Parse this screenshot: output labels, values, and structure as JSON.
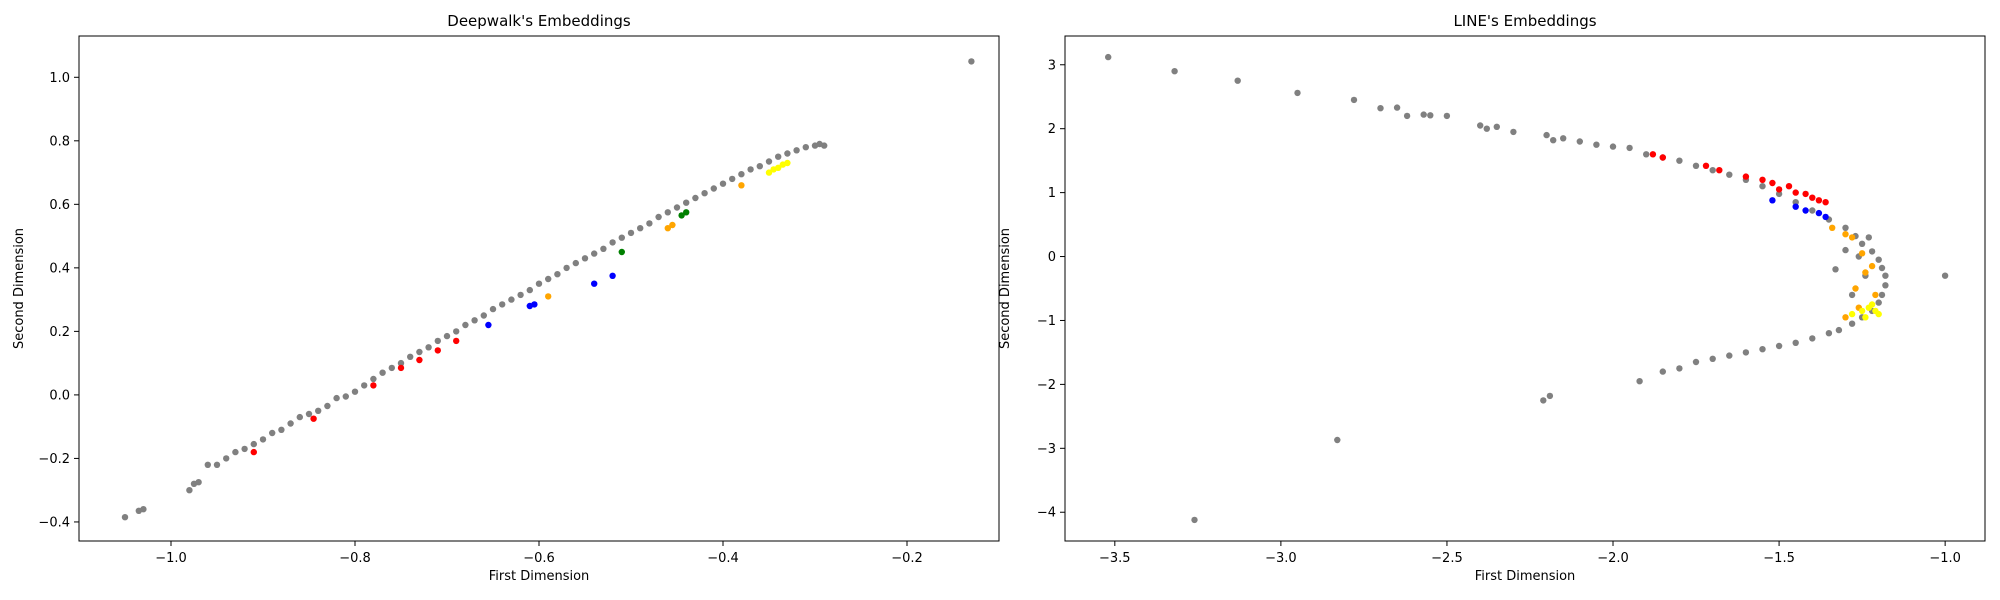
{
  "chart_data": [
    {
      "type": "scatter",
      "title": "Deepwalk's Embeddings",
      "xlabel": "First Dimension",
      "ylabel": "Second Dimension",
      "xlim": [
        -1.1,
        -0.1
      ],
      "ylim": [
        -0.46,
        1.13
      ],
      "xticks": [
        -1.0,
        -0.8,
        -0.6,
        -0.4,
        -0.2
      ],
      "xtick_labels": [
        "−1.0",
        "−0.8",
        "−0.6",
        "−0.4",
        "−0.2"
      ],
      "yticks": [
        -0.4,
        -0.2,
        0.0,
        0.2,
        0.4,
        0.6,
        0.8,
        1.0
      ],
      "ytick_labels": [
        "−0.4",
        "−0.2",
        "0.0",
        "0.2",
        "0.4",
        "0.6",
        "0.8",
        "1.0"
      ],
      "grid": false,
      "legend": "none",
      "series": [
        {
          "color": "#808080",
          "x": [
            -1.05,
            -1.035,
            -1.03,
            -0.98,
            -0.975,
            -0.97,
            -0.96,
            -0.95,
            -0.94,
            -0.93,
            -0.92,
            -0.91,
            -0.9,
            -0.89,
            -0.88,
            -0.87,
            -0.86,
            -0.85,
            -0.84,
            -0.83,
            -0.82,
            -0.81,
            -0.8,
            -0.79,
            -0.78,
            -0.77,
            -0.76,
            -0.75,
            -0.74,
            -0.73,
            -0.72,
            -0.71,
            -0.7,
            -0.69,
            -0.68,
            -0.67,
            -0.66,
            -0.65,
            -0.64,
            -0.63,
            -0.62,
            -0.61,
            -0.6,
            -0.59,
            -0.58,
            -0.57,
            -0.56,
            -0.55,
            -0.54,
            -0.53,
            -0.52,
            -0.51,
            -0.5,
            -0.49,
            -0.48,
            -0.47,
            -0.46,
            -0.45,
            -0.44,
            -0.43,
            -0.42,
            -0.41,
            -0.4,
            -0.39,
            -0.38,
            -0.37,
            -0.36,
            -0.35,
            -0.34,
            -0.33,
            -0.32,
            -0.31,
            -0.3,
            -0.295,
            -0.29,
            -0.13
          ],
          "y": [
            -0.385,
            -0.365,
            -0.36,
            -0.3,
            -0.28,
            -0.275,
            -0.22,
            -0.22,
            -0.2,
            -0.18,
            -0.17,
            -0.155,
            -0.14,
            -0.12,
            -0.11,
            -0.09,
            -0.07,
            -0.06,
            -0.05,
            -0.035,
            -0.01,
            -0.005,
            0.01,
            0.03,
            0.05,
            0.07,
            0.085,
            0.1,
            0.12,
            0.135,
            0.15,
            0.17,
            0.185,
            0.2,
            0.22,
            0.235,
            0.25,
            0.27,
            0.285,
            0.3,
            0.315,
            0.33,
            0.35,
            0.365,
            0.38,
            0.4,
            0.415,
            0.43,
            0.445,
            0.46,
            0.48,
            0.495,
            0.51,
            0.525,
            0.54,
            0.56,
            0.575,
            0.59,
            0.605,
            0.62,
            0.635,
            0.65,
            0.665,
            0.68,
            0.695,
            0.71,
            0.72,
            0.735,
            0.75,
            0.76,
            0.77,
            0.78,
            0.785,
            0.79,
            0.785,
            1.05
          ]
        },
        {
          "color": "#ff0000",
          "x": [
            -0.91,
            -0.845,
            -0.78,
            -0.75,
            -0.73,
            -0.71,
            -0.69
          ],
          "y": [
            -0.18,
            -0.075,
            0.03,
            0.085,
            0.11,
            0.14,
            0.17
          ]
        },
        {
          "color": "#0000ff",
          "x": [
            -0.655,
            -0.61,
            -0.605,
            -0.54,
            -0.52
          ],
          "y": [
            0.22,
            0.28,
            0.285,
            0.35,
            0.375
          ]
        },
        {
          "color": "#008000",
          "x": [
            -0.51,
            -0.445,
            -0.44
          ],
          "y": [
            0.45,
            0.565,
            0.575
          ]
        },
        {
          "color": "#ffa500",
          "x": [
            -0.59,
            -0.46,
            -0.455,
            -0.38
          ],
          "y": [
            0.31,
            0.525,
            0.535,
            0.66
          ]
        },
        {
          "color": "#ffff00",
          "x": [
            -0.35,
            -0.345,
            -0.34,
            -0.335,
            -0.33
          ],
          "y": [
            0.7,
            0.71,
            0.715,
            0.725,
            0.73
          ]
        }
      ]
    },
    {
      "type": "scatter",
      "title": "LINE's Embeddings",
      "xlabel": "First Dimension",
      "ylabel": "Second Dimension",
      "xlim": [
        -3.65,
        -0.88
      ],
      "ylim": [
        -4.45,
        3.45
      ],
      "xticks": [
        -3.5,
        -3.0,
        -2.5,
        -2.0,
        -1.5,
        -1.0
      ],
      "xtick_labels": [
        "−3.5",
        "−3.0",
        "−2.5",
        "−2.0",
        "−1.5",
        "−1.0"
      ],
      "yticks": [
        -4,
        -3,
        -2,
        -1,
        0,
        1,
        2,
        3
      ],
      "ytick_labels": [
        "−4",
        "−3",
        "−2",
        "−1",
        "0",
        "1",
        "2",
        "3"
      ],
      "grid": false,
      "legend": "none",
      "series": [
        {
          "color": "#808080",
          "x": [
            -3.52,
            -3.32,
            -3.13,
            -2.95,
            -2.78,
            -2.7,
            -2.65,
            -2.62,
            -2.57,
            -2.55,
            -2.5,
            -2.4,
            -2.38,
            -2.35,
            -2.3,
            -2.2,
            -2.18,
            -2.15,
            -2.1,
            -2.05,
            -2.0,
            -1.95,
            -1.9,
            -1.85,
            -1.8,
            -1.75,
            -1.7,
            -1.65,
            -1.6,
            -1.55,
            -1.5,
            -1.45,
            -1.4,
            -1.35,
            -1.3,
            -1.27,
            -1.25,
            -1.22,
            -1.2,
            -1.19,
            -1.18,
            -1.18,
            -1.19,
            -1.2,
            -1.22,
            -1.25,
            -1.28,
            -1.32,
            -1.35,
            -1.4,
            -1.45,
            -1.5,
            -1.55,
            -1.6,
            -1.65,
            -1.7,
            -1.75,
            -1.8,
            -1.85,
            -1.92,
            -1.0,
            -2.21,
            -2.19,
            -2.83,
            -3.26,
            -1.26,
            -1.24,
            -1.28,
            -1.23,
            -1.3,
            -1.33
          ],
          "y": [
            3.12,
            2.9,
            2.75,
            2.56,
            2.45,
            2.32,
            2.33,
            2.2,
            2.22,
            2.21,
            2.2,
            2.05,
            2.0,
            2.03,
            1.95,
            1.9,
            1.82,
            1.85,
            1.8,
            1.75,
            1.72,
            1.7,
            1.6,
            1.55,
            1.5,
            1.42,
            1.35,
            1.28,
            1.2,
            1.1,
            0.98,
            0.85,
            0.72,
            0.58,
            0.45,
            0.32,
            0.2,
            0.08,
            -0.05,
            -0.18,
            -0.3,
            -0.45,
            -0.6,
            -0.72,
            -0.85,
            -0.95,
            -1.05,
            -1.15,
            -1.2,
            -1.28,
            -1.35,
            -1.4,
            -1.45,
            -1.5,
            -1.55,
            -1.6,
            -1.65,
            -1.75,
            -1.8,
            -1.95,
            -0.3,
            -2.25,
            -2.18,
            -2.87,
            -4.12,
            0.0,
            -0.3,
            -0.6,
            0.3,
            0.1,
            -0.2
          ]
        },
        {
          "color": "#ff0000",
          "x": [
            -1.88,
            -1.85,
            -1.72,
            -1.68,
            -1.6,
            -1.55,
            -1.52,
            -1.5,
            -1.47,
            -1.45,
            -1.42,
            -1.4,
            -1.38,
            -1.36
          ],
          "y": [
            1.6,
            1.55,
            1.42,
            1.35,
            1.25,
            1.2,
            1.15,
            1.05,
            1.1,
            1.0,
            0.98,
            0.92,
            0.88,
            0.85
          ]
        },
        {
          "color": "#0000ff",
          "x": [
            -1.52,
            -1.45,
            -1.42,
            -1.38,
            -1.36
          ],
          "y": [
            0.88,
            0.78,
            0.72,
            0.68,
            0.62
          ]
        },
        {
          "color": "#ffa500",
          "x": [
            -1.34,
            -1.3,
            -1.28,
            -1.25,
            -1.22,
            -1.24,
            -1.27,
            -1.21,
            -1.3,
            -1.26
          ],
          "y": [
            0.45,
            0.35,
            0.3,
            0.05,
            -0.15,
            -0.25,
            -0.5,
            -0.6,
            -0.95,
            -0.8
          ]
        },
        {
          "color": "#ffff00",
          "x": [
            -1.28,
            -1.25,
            -1.23,
            -1.22,
            -1.21,
            -1.2,
            -1.24
          ],
          "y": [
            -0.9,
            -0.85,
            -0.8,
            -0.75,
            -0.85,
            -0.9,
            -0.95
          ]
        }
      ]
    }
  ]
}
